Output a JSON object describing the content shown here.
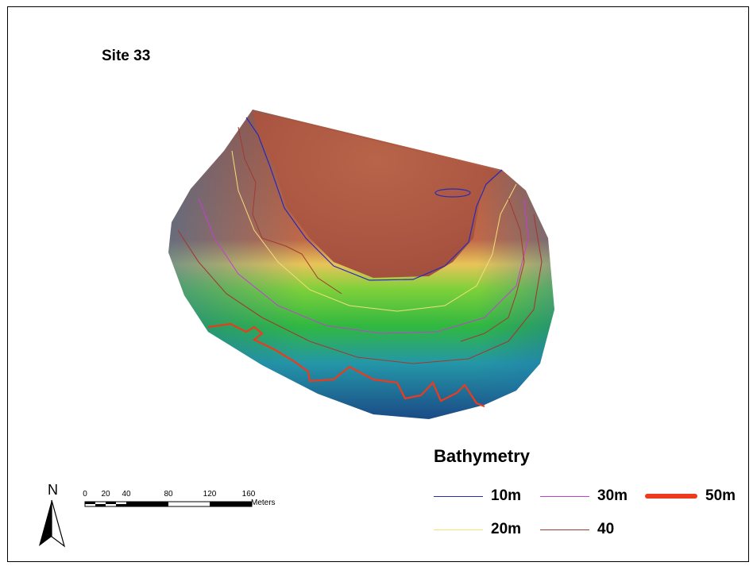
{
  "map": {
    "title": "Site 33",
    "terrain_colors": [
      "#b05a48",
      "#e6c85a",
      "#3fc02a",
      "#1f8fb0",
      "#1b4f86"
    ]
  },
  "legend": {
    "title": "Bathymetry",
    "items": [
      {
        "label": "10m",
        "color": "#2a2ab4"
      },
      {
        "label": "30m",
        "color": "#c040d0"
      },
      {
        "label": "50m",
        "color": "#ee3a1c"
      },
      {
        "label": "20m",
        "color": "#f2e07a"
      },
      {
        "label": "40",
        "color": "#a03a30"
      }
    ]
  },
  "north_arrow": {
    "label": "N"
  },
  "scale_bar": {
    "ticks": [
      "0",
      "20",
      "40",
      "80",
      "120",
      "160"
    ],
    "units": "Meters"
  }
}
